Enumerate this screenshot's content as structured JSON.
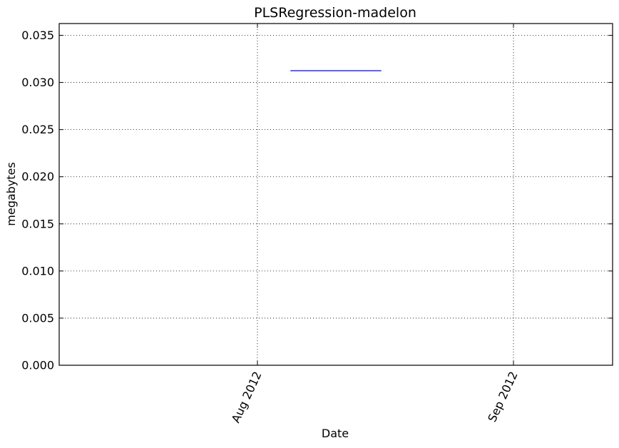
{
  "chart_data": {
    "type": "line",
    "title": "PLSRegression-madelon",
    "xlabel": "Date",
    "ylabel": "megabytes",
    "grid": true,
    "x_range": [
      "2012-07-08",
      "2012-09-13"
    ],
    "ylim": [
      0,
      0.03625
    ],
    "y_ticks": [
      0.0,
      0.005,
      0.01,
      0.015,
      0.02,
      0.025,
      0.03,
      0.035
    ],
    "y_tick_labels": [
      "0.000",
      "0.005",
      "0.010",
      "0.015",
      "0.020",
      "0.025",
      "0.030",
      "0.035"
    ],
    "x_ticks": [
      "2012-08-01",
      "2012-09-01"
    ],
    "x_tick_labels": [
      "Aug 2012",
      "Sep 2012"
    ],
    "series": [
      {
        "color": "#0000ff",
        "x": [
          "2012-08-05",
          "2012-08-16"
        ],
        "y": [
          0.03125,
          0.03125
        ]
      }
    ]
  }
}
